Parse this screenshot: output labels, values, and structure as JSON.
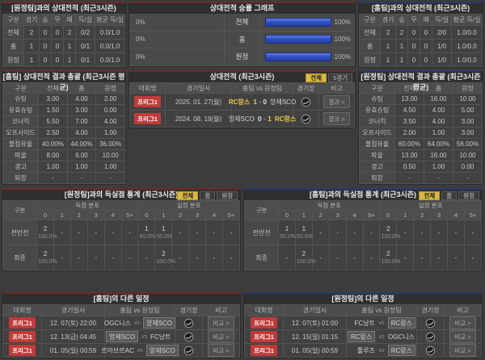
{
  "colors": {
    "accent_red": "#6e2a2a",
    "accent_blue": "#2a3a6e",
    "bar_blue": "#2c4cc0",
    "tab_active": "#d9b944",
    "badge_red": "#c03a3a",
    "winner_yellow": "#e9c94c"
  },
  "h2h_vs_away": {
    "title": "[원정팀]과의 상대전적 (최근3시즌)",
    "columns": [
      "구분",
      "경기",
      "승",
      "무",
      "패",
      "득/실",
      "평균 득/실"
    ],
    "rows": [
      [
        "전체",
        "2",
        "0",
        "0",
        "2",
        "0/2",
        "0.0/1.0"
      ],
      [
        "홈",
        "1",
        "0",
        "0",
        "1",
        "0/1",
        "0.0/1.0"
      ],
      [
        "원정",
        "1",
        "0",
        "0",
        "1",
        "0/1",
        "0.0/1.0"
      ]
    ]
  },
  "winrate_graph": {
    "title": "상대전적 승률 그래프",
    "rows": [
      {
        "label": "전체",
        "left_pct": "0%",
        "right_pct": "100%",
        "left_value": 0,
        "right_value": 100
      },
      {
        "label": "홈",
        "left_pct": "0%",
        "right_pct": "100%",
        "left_value": 0,
        "right_value": 100
      },
      {
        "label": "원정",
        "left_pct": "0%",
        "right_pct": "100%",
        "left_value": 0,
        "right_value": 100
      }
    ]
  },
  "h2h_vs_home": {
    "title": "[홈팀]과의 상대전적 (최근3시즌)",
    "columns": [
      "구분",
      "경기",
      "승",
      "무",
      "패",
      "득/실",
      "평균 득/실"
    ],
    "rows": [
      [
        "전체",
        "2",
        "2",
        "0",
        "0",
        "2/0",
        "1.0/0.0"
      ],
      [
        "홈",
        "1",
        "1",
        "0",
        "0",
        "1/0",
        "1.0/0.0"
      ],
      [
        "원정",
        "1",
        "1",
        "0",
        "0",
        "1/0",
        "1.0/0.0"
      ]
    ]
  },
  "home_stats": {
    "title": "[홈팀] 상대전적 결과 총괄 (최근3시즌 평균)",
    "columns": [
      "구분",
      "전체",
      "홈",
      "원정"
    ],
    "rows": [
      [
        "슈팅",
        "3.00",
        "4.00",
        "2.00"
      ],
      [
        "유효슈팅",
        "1.50",
        "3.00",
        "0.00"
      ],
      [
        "코너킥",
        "5.50",
        "7.00",
        "4.00"
      ],
      [
        "오프사이드",
        "2.50",
        "4.00",
        "1.00"
      ],
      [
        "볼점유율",
        "40.00%",
        "44.00%",
        "36.00%"
      ],
      [
        "파울",
        "8.00",
        "6.00",
        "10.00"
      ],
      [
        "경고",
        "1.00",
        "1.00",
        "1.00"
      ],
      [
        "퇴장",
        "-",
        "-",
        "-"
      ]
    ]
  },
  "away_stats": {
    "title": "[원정팀] 상대전적 결과 총괄 (최근3시즌 평균)",
    "columns": [
      "구분",
      "전체",
      "홈",
      "원정"
    ],
    "rows": [
      [
        "슈팅",
        "13.00",
        "16.00",
        "10.00"
      ],
      [
        "유효슈팅",
        "4.50",
        "4.00",
        "5.00"
      ],
      [
        "코너킥",
        "3.50",
        "4.00",
        "3.00"
      ],
      [
        "오프사이드",
        "2.00",
        "1.00",
        "3.00"
      ],
      [
        "볼점유율",
        "60.00%",
        "64.00%",
        "56.00%"
      ],
      [
        "파울",
        "13.00",
        "16.00",
        "10.00"
      ],
      [
        "경고",
        "0.50",
        "1.00",
        "0.00"
      ],
      [
        "퇴장",
        "-",
        "-",
        "-"
      ]
    ]
  },
  "h2h_matches": {
    "title": "상대전적 (최근3시즌)",
    "tabs": [
      {
        "label": "전체",
        "active": true
      },
      {
        "label": "5경기",
        "active": false
      }
    ],
    "columns": [
      "대회명",
      "경기일시",
      "홈팀 vs 원정팀",
      "경기장",
      "비고"
    ],
    "button_label": "결과 >",
    "rows": [
      {
        "league": "프리그1",
        "datetime": "2025. 01. 27(월)",
        "home": "RC랑스",
        "home_score": "1",
        "away_score": "0",
        "away": "앙제SCO",
        "winner": "home"
      },
      {
        "league": "프리그1",
        "datetime": "2024. 08. 19(월)",
        "home": "앙제SCO",
        "home_score": "0",
        "away_score": "1",
        "away": "RC랑스",
        "winner": "away"
      }
    ]
  },
  "goals_home": {
    "title": "[원정팀]과의 득실점 통계 (최근3시즌)",
    "tabs": [
      {
        "label": "전체",
        "active": true
      },
      {
        "label": "홈",
        "active": false
      },
      {
        "label": "원정",
        "active": false
      }
    ],
    "corner_label": "구분",
    "group_headers": [
      "득점 분포",
      "실점 분포"
    ],
    "sub_columns": [
      "0",
      "1",
      "2",
      "3",
      "4",
      "5+"
    ],
    "rows": [
      {
        "label": "전반전",
        "scored": [
          "2|100.0%",
          "-",
          "-",
          "-",
          "-",
          "-"
        ],
        "conceded": [
          "1|50.0%",
          "1|50.0%",
          "-",
          "-",
          "-",
          "-"
        ]
      },
      {
        "label": "최종",
        "scored": [
          "2|100.0%",
          "-",
          "-",
          "-",
          "-",
          "-"
        ],
        "conceded": [
          "-",
          "2|100.0%",
          "-",
          "-",
          "-",
          "-"
        ]
      }
    ]
  },
  "goals_away": {
    "title": "[홈팀]과의 득실점 통계 (최근3시즌)",
    "tabs": [
      {
        "label": "전체",
        "active": true
      },
      {
        "label": "홈",
        "active": false
      },
      {
        "label": "원정",
        "active": false
      }
    ],
    "corner_label": "구분",
    "group_headers": [
      "득점 분포",
      "실점 분포"
    ],
    "sub_columns": [
      "0",
      "1",
      "2",
      "3",
      "4",
      "5+"
    ],
    "rows": [
      {
        "label": "전반전",
        "scored": [
          "1|50.0%",
          "1|50.0%",
          "-",
          "-",
          "-",
          "-"
        ],
        "conceded": [
          "2|100.0%",
          "-",
          "-",
          "-",
          "-",
          "-"
        ]
      },
      {
        "label": "최종",
        "scored": [
          "-",
          "2|100.0%",
          "-",
          "-",
          "-",
          "-"
        ],
        "conceded": [
          "2|100.0%",
          "-",
          "-",
          "-",
          "-",
          "-"
        ]
      }
    ]
  },
  "home_schedule": {
    "title": "[홈팀]의 다른 일정",
    "columns": [
      "대회명",
      "경기일시",
      "홈팀 vs 원정팀",
      "경기장",
      "비고"
    ],
    "button_label": "비교 >",
    "rows": [
      {
        "league": "프리그1",
        "datetime": "12. 07(토) 22:00",
        "home": "OGC니스",
        "away": "앙제SCO",
        "highlight": "away"
      },
      {
        "league": "프리그1",
        "datetime": "12. 13(금) 04:45",
        "home": "앙제SCO",
        "away": "FC낭트",
        "highlight": "home"
      },
      {
        "league": "프리그1",
        "datetime": "01. 05(일) 00:59",
        "home": "르아브르AC",
        "away": "앙제SCO",
        "highlight": "away"
      }
    ]
  },
  "away_schedule": {
    "title": "[원정팀]의 다른 일정",
    "columns": [
      "대회명",
      "경기일시",
      "홈팀 vs 원정팀",
      "경기장",
      "비고"
    ],
    "button_label": "비교 >",
    "rows": [
      {
        "league": "프리그1",
        "datetime": "12. 07(토) 01:00",
        "home": "FC낭트",
        "away": "RC랑스",
        "highlight": "away"
      },
      {
        "league": "프리그1",
        "datetime": "12. 15(일) 01:15",
        "home": "RC랑스",
        "away": "OGC니스",
        "highlight": "home"
      },
      {
        "league": "프리그1",
        "datetime": "01. 05(일) 00:59",
        "home": "툴루즈",
        "away": "RC랑스",
        "highlight": "away"
      }
    ]
  }
}
